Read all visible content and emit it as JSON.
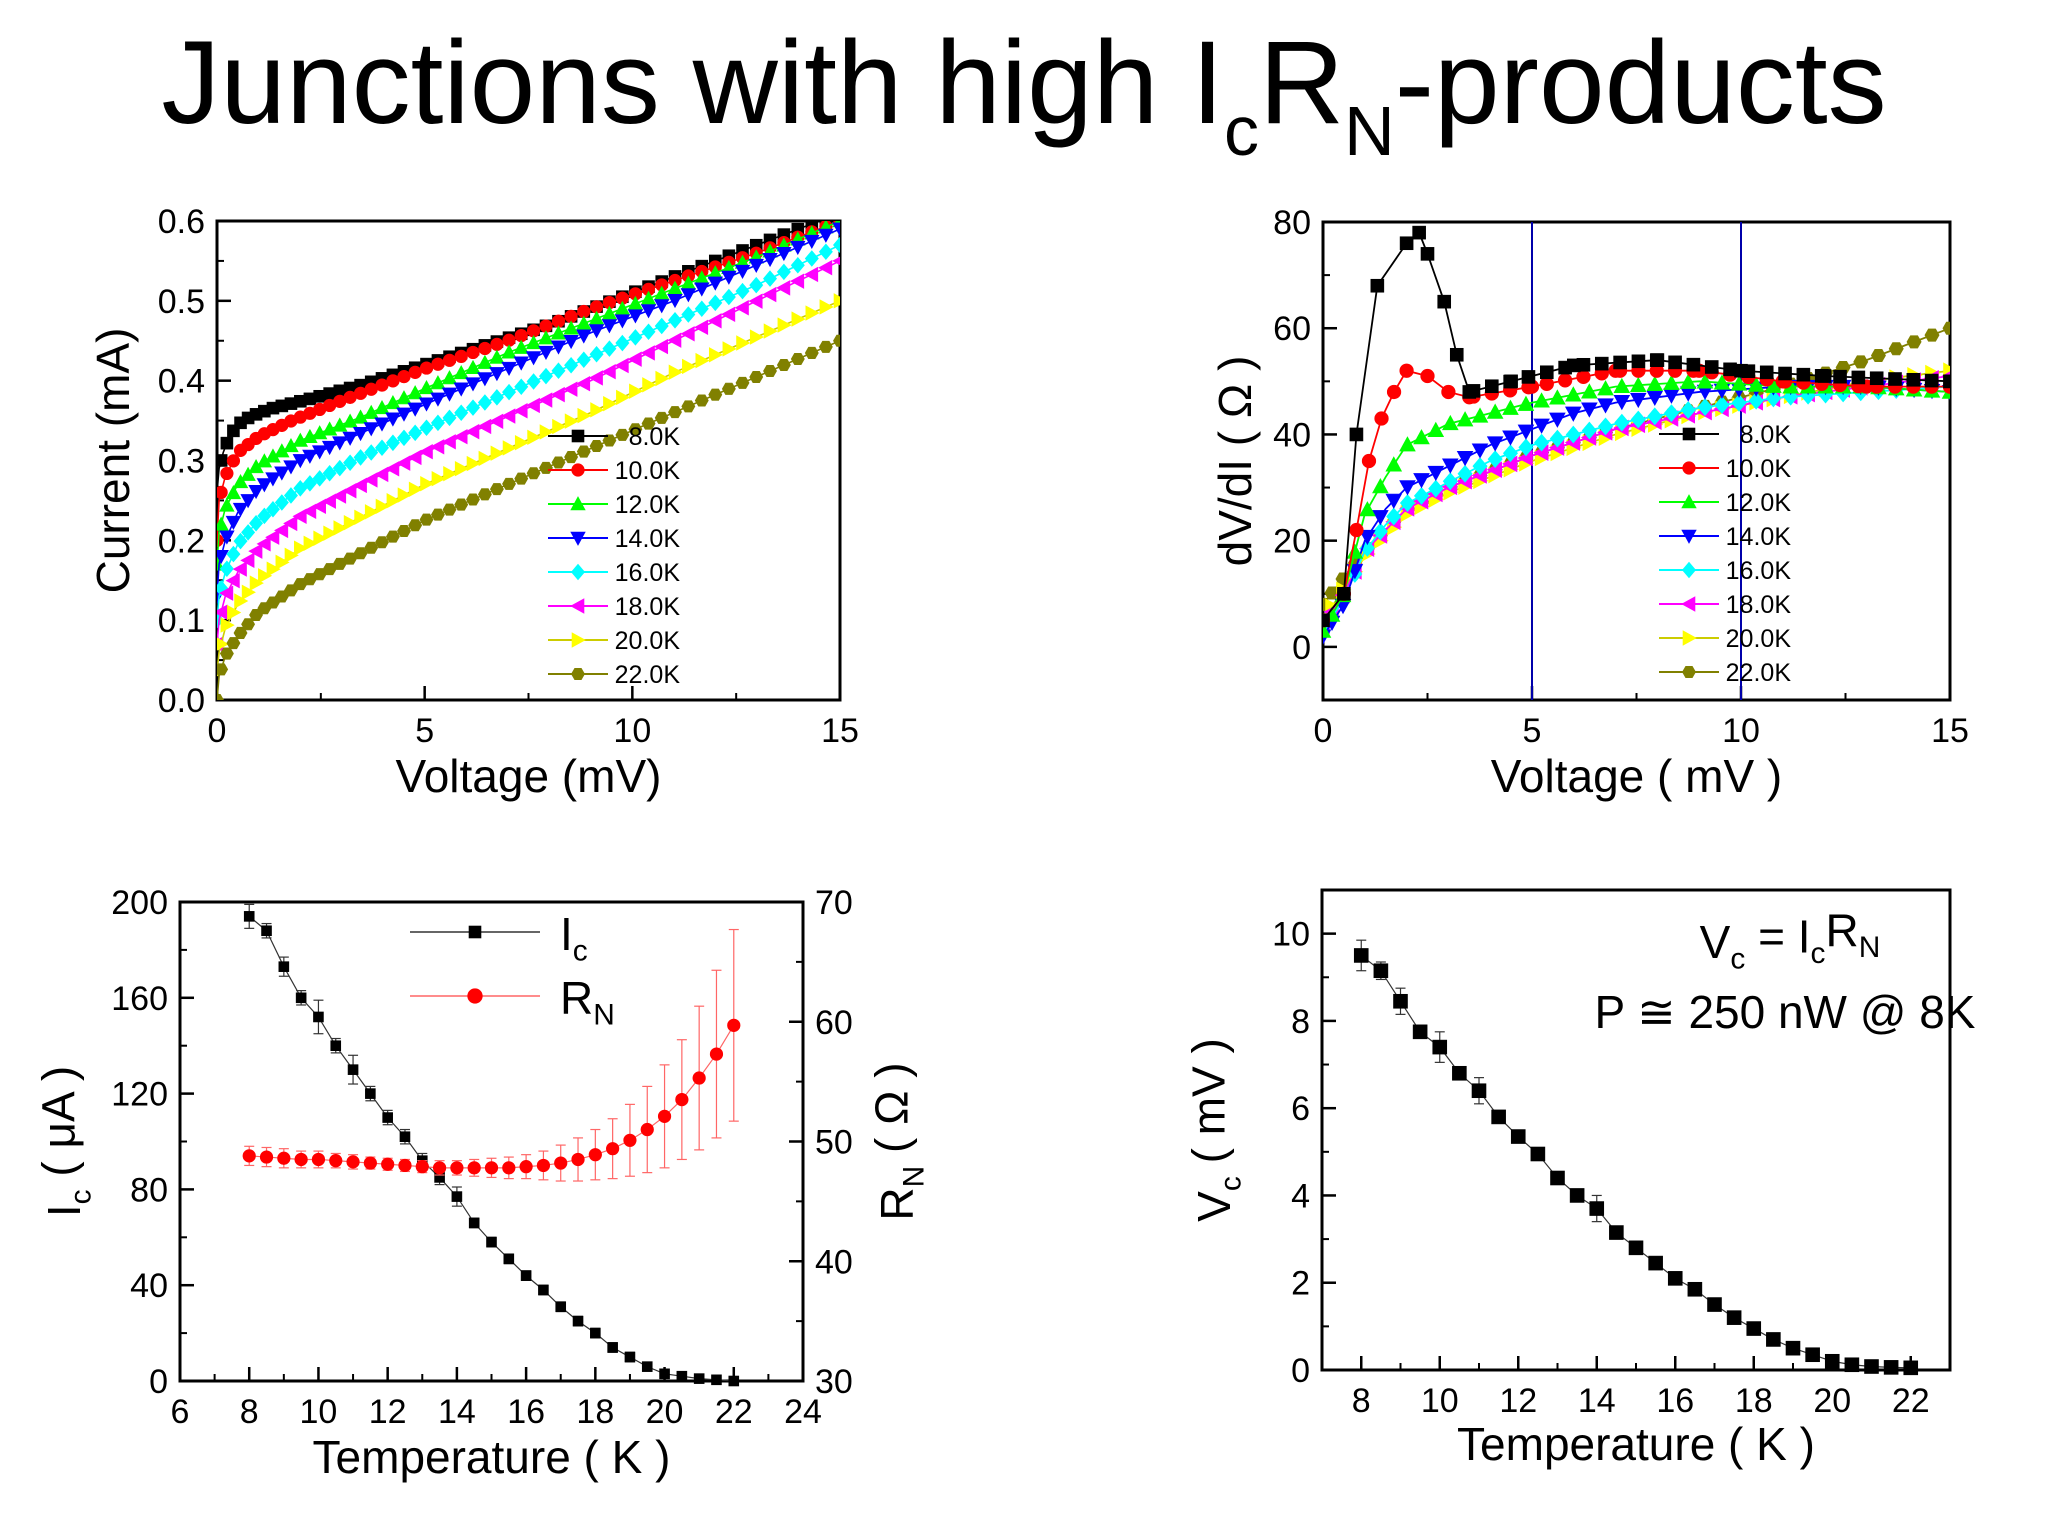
{
  "slide": {
    "title_main": "Junctions with high I",
    "title_sub1": "c",
    "title_mid": "R",
    "title_sub2": "N",
    "title_end": "-products"
  },
  "chart_data": [
    {
      "id": "iv",
      "type": "line",
      "xlabel": "Voltage (mV)",
      "ylabel": "Current (mA)",
      "xlim": [
        0,
        15
      ],
      "ylim": [
        0,
        0.6
      ],
      "xticks": [
        0,
        5,
        10,
        15
      ],
      "yticks": [
        0.0,
        0.1,
        0.2,
        0.3,
        0.4,
        0.5,
        0.6
      ],
      "ytick_labels": [
        "0.0",
        "0.1",
        "0.2",
        "0.3",
        "0.4",
        "0.5",
        "0.6"
      ],
      "legend": "right",
      "series": [
        {
          "name": "8.0K",
          "color": "#000000",
          "marker": "square",
          "x": [
            0,
            0.05,
            0.15,
            0.3,
            0.5,
            0.8,
            1.3,
            2.3,
            3.5,
            5,
            6.5,
            8,
            10,
            12,
            13.5,
            15
          ],
          "y": [
            0.26,
            0.29,
            0.31,
            0.33,
            0.345,
            0.355,
            0.365,
            0.378,
            0.395,
            0.42,
            0.445,
            0.47,
            0.51,
            0.55,
            0.58,
            0.61
          ]
        },
        {
          "name": "10.0K",
          "color": "#ff0000",
          "marker": "circle",
          "x": [
            0,
            0.05,
            0.2,
            0.5,
            1,
            1.8,
            3,
            5,
            7,
            9,
            11,
            13,
            15
          ],
          "y": [
            0.2,
            0.25,
            0.28,
            0.31,
            0.33,
            0.35,
            0.375,
            0.415,
            0.45,
            0.49,
            0.525,
            0.56,
            0.6
          ]
        },
        {
          "name": "12.0K",
          "color": "#00ff00",
          "marker": "triangle-up",
          "x": [
            0,
            0.05,
            0.2,
            0.5,
            1,
            2,
            3.5,
            5,
            7,
            9,
            11,
            13,
            15
          ],
          "y": [
            0.17,
            0.21,
            0.24,
            0.27,
            0.295,
            0.325,
            0.355,
            0.39,
            0.435,
            0.475,
            0.515,
            0.555,
            0.6
          ]
        },
        {
          "name": "14.0K",
          "color": "#0000ff",
          "marker": "triangle-down",
          "x": [
            0,
            0.05,
            0.2,
            0.5,
            1,
            2,
            3.5,
            5,
            7,
            9,
            11,
            13,
            15
          ],
          "y": [
            0.13,
            0.17,
            0.2,
            0.235,
            0.265,
            0.3,
            0.335,
            0.37,
            0.415,
            0.46,
            0.5,
            0.545,
            0.59
          ]
        },
        {
          "name": "16.0K",
          "color": "#00ffff",
          "marker": "diamond",
          "x": [
            0,
            0.05,
            0.2,
            0.5,
            1,
            2,
            3.5,
            5,
            7,
            9,
            11,
            13,
            15
          ],
          "y": [
            0.1,
            0.13,
            0.16,
            0.195,
            0.225,
            0.265,
            0.305,
            0.34,
            0.385,
            0.43,
            0.475,
            0.52,
            0.57
          ]
        },
        {
          "name": "18.0K",
          "color": "#ff00ff",
          "marker": "triangle-left",
          "x": [
            0,
            0.05,
            0.2,
            0.5,
            1,
            2,
            3.5,
            5,
            7,
            9,
            11,
            13,
            15
          ],
          "y": [
            0.07,
            0.1,
            0.13,
            0.16,
            0.19,
            0.23,
            0.27,
            0.31,
            0.355,
            0.4,
            0.45,
            0.5,
            0.55
          ]
        },
        {
          "name": "20.0K",
          "color": "#ffff00",
          "marker": "triangle-right",
          "x": [
            0,
            0.05,
            0.2,
            0.5,
            1,
            2,
            3.5,
            5,
            7,
            9,
            11,
            13,
            15
          ],
          "y": [
            0.035,
            0.06,
            0.09,
            0.12,
            0.15,
            0.19,
            0.23,
            0.27,
            0.315,
            0.36,
            0.41,
            0.455,
            0.5
          ]
        },
        {
          "name": "22.0K",
          "color": "#808000",
          "marker": "hexagon",
          "x": [
            0,
            0.05,
            0.2,
            0.5,
            1,
            2,
            3.5,
            5,
            7,
            9,
            11,
            13,
            15
          ],
          "y": [
            0.0,
            0.03,
            0.055,
            0.08,
            0.11,
            0.145,
            0.185,
            0.225,
            0.27,
            0.315,
            0.36,
            0.405,
            0.45
          ]
        }
      ]
    },
    {
      "id": "dvdi",
      "type": "line",
      "xlabel": "Voltage ( mV )",
      "ylabel": "dV/dI ( Ω )",
      "xlim": [
        0,
        15
      ],
      "ylim": [
        -10,
        80
      ],
      "xticks": [
        0,
        5,
        10,
        15
      ],
      "yticks": [
        0,
        20,
        40,
        60,
        80
      ],
      "ytick_labels": [
        "0",
        "20",
        "40",
        "60",
        "80"
      ],
      "vlines": [
        5,
        10
      ],
      "vline_color": "#0000aa",
      "legend": "right",
      "series": [
        {
          "name": "8.0K",
          "color": "#000000",
          "marker": "square",
          "x": [
            0,
            0.5,
            0.8,
            1.3,
            2.0,
            2.3,
            2.5,
            2.9,
            3.2,
            3.5,
            4.5,
            6,
            8,
            10,
            12,
            15
          ],
          "y": [
            5,
            10,
            40,
            68,
            76,
            78,
            74,
            65,
            55,
            48,
            50,
            53,
            54,
            52,
            51,
            50
          ]
        },
        {
          "name": "10.0K",
          "color": "#ff0000",
          "marker": "circle",
          "x": [
            0,
            0.5,
            0.8,
            1.1,
            1.4,
            1.7,
            2.0,
            2.5,
            3.0,
            3.5,
            5,
            7,
            9,
            11,
            13,
            15
          ],
          "y": [
            5,
            10,
            22,
            35,
            43,
            48,
            52,
            51,
            48,
            47,
            49,
            52,
            52,
            50,
            49,
            49
          ]
        },
        {
          "name": "12.0K",
          "color": "#00ff00",
          "marker": "triangle-up",
          "x": [
            0,
            0.5,
            1,
            1.5,
            2,
            3,
            4,
            5,
            7,
            9,
            11,
            13,
            15
          ],
          "y": [
            3,
            10,
            25,
            32,
            38,
            42,
            44,
            46,
            49,
            50,
            49,
            49,
            48
          ]
        },
        {
          "name": "14.0K",
          "color": "#0000ff",
          "marker": "triangle-down",
          "x": [
            0,
            0.5,
            1,
            1.5,
            2,
            3,
            4,
            5,
            6,
            7,
            9,
            11,
            13,
            15
          ],
          "y": [
            2,
            8,
            20,
            26,
            30,
            34,
            38,
            41,
            44,
            46,
            48,
            49,
            49,
            48
          ]
        },
        {
          "name": "16.0K",
          "color": "#00ffff",
          "marker": "diamond",
          "x": [
            0,
            0.5,
            1,
            1.5,
            2,
            3,
            4,
            5,
            7,
            9,
            11,
            13,
            15
          ],
          "y": [
            3,
            9,
            18,
            23,
            27,
            31,
            35,
            38,
            42,
            45,
            47,
            48,
            49
          ]
        },
        {
          "name": "18.0K",
          "color": "#ff00ff",
          "marker": "triangle-left",
          "x": [
            0,
            0.5,
            1,
            1.5,
            2,
            3,
            4,
            5,
            7,
            9,
            11,
            13,
            15
          ],
          "y": [
            4,
            10,
            18,
            22,
            26,
            30,
            33,
            36,
            41,
            44,
            47,
            49,
            51
          ]
        },
        {
          "name": "20.0K",
          "color": "#ffff00",
          "marker": "triangle-right",
          "x": [
            0,
            0.5,
            1,
            1.5,
            2,
            3,
            4,
            5,
            7,
            9,
            11,
            13,
            15
          ],
          "y": [
            5,
            11,
            17,
            21,
            25,
            29,
            32,
            35,
            40,
            44,
            47,
            50,
            52
          ]
        },
        {
          "name": "22.0K",
          "color": "#808000",
          "marker": "hexagon",
          "x": [
            0,
            0.5,
            1,
            1.5,
            2,
            3,
            4,
            5,
            7,
            9,
            11,
            13,
            15
          ],
          "y": [
            8,
            13,
            18,
            22,
            26,
            30,
            33,
            36,
            41,
            45,
            49,
            54,
            60
          ]
        }
      ]
    },
    {
      "id": "ic_rn",
      "type": "scatter",
      "xlabel": "Temperature ( K )",
      "ylabel": "I",
      "ylabel_sub": "c",
      "ylabel_tail": " ( μA )",
      "y2label": "R",
      "y2label_sub": "N",
      "y2label_tail": " ( Ω )",
      "xlim": [
        6,
        24
      ],
      "ylim": [
        0,
        200
      ],
      "y2lim": [
        30,
        70
      ],
      "xticks": [
        6,
        8,
        10,
        12,
        14,
        16,
        18,
        20,
        22,
        24
      ],
      "yticks": [
        0,
        40,
        80,
        120,
        160,
        200
      ],
      "y2ticks": [
        30,
        40,
        50,
        60,
        70
      ],
      "legend": "top-center",
      "series": [
        {
          "name": "I",
          "name_sub": "c",
          "axis": "left",
          "color": "#000000",
          "marker": "square",
          "x": [
            8,
            8.5,
            9,
            9.5,
            10,
            10.5,
            11,
            11.5,
            12,
            12.5,
            13,
            13.5,
            14,
            14.5,
            15,
            15.5,
            16,
            16.5,
            17,
            17.5,
            18,
            18.5,
            19,
            19.5,
            20,
            20.5,
            21,
            21.5,
            22
          ],
          "y": [
            194,
            188,
            173,
            160,
            152,
            140,
            130,
            120,
            110,
            102,
            92,
            85,
            77,
            66,
            58,
            51,
            44,
            38,
            31,
            25,
            20,
            14,
            10,
            6,
            3,
            2,
            1,
            0.5,
            0
          ],
          "err": [
            5,
            3,
            4,
            3,
            7,
            3,
            6,
            3,
            3,
            3,
            3,
            3,
            4,
            2,
            2,
            2,
            2,
            2,
            2,
            2,
            2,
            2,
            2,
            1,
            1,
            1,
            1,
            1,
            1
          ]
        },
        {
          "name": "R",
          "name_sub": "N",
          "axis": "right",
          "color": "#ff0000",
          "marker": "circle",
          "x": [
            8,
            8.5,
            9,
            9.5,
            10,
            10.5,
            11,
            11.5,
            12,
            12.5,
            13,
            13.5,
            14,
            14.5,
            15,
            15.5,
            16,
            16.5,
            17,
            17.5,
            18,
            18.5,
            19,
            19.5,
            20,
            20.5,
            21,
            21.5,
            22
          ],
          "y": [
            48.8,
            48.7,
            48.6,
            48.5,
            48.5,
            48.4,
            48.3,
            48.2,
            48.1,
            48.0,
            47.9,
            47.8,
            47.8,
            47.8,
            47.8,
            47.8,
            47.9,
            48.0,
            48.2,
            48.5,
            48.9,
            49.4,
            50.1,
            51,
            52.1,
            53.5,
            55.3,
            57.3,
            59.7
          ],
          "err": [
            0.8,
            0.8,
            0.8,
            0.7,
            0.7,
            0.6,
            0.6,
            0.5,
            0.5,
            0.5,
            0.5,
            0.6,
            0.6,
            0.7,
            0.8,
            0.9,
            1.0,
            1.2,
            1.5,
            1.8,
            2.1,
            2.5,
            3.0,
            3.6,
            4.3,
            5.0,
            6.0,
            7.0,
            8.0
          ]
        }
      ]
    },
    {
      "id": "vc",
      "type": "scatter",
      "xlabel": "Temperature ( K )",
      "ylabel": "V",
      "ylabel_sub": "c",
      "ylabel_tail": " ( mV )",
      "xlim": [
        7,
        23
      ],
      "ylim": [
        0,
        11
      ],
      "xticks": [
        8,
        10,
        12,
        14,
        16,
        18,
        20,
        22
      ],
      "yticks": [
        0,
        2,
        4,
        6,
        8,
        10
      ],
      "annotations": {
        "line1_a": "V",
        "line1_a_sub": "c",
        "line1_b": " = I",
        "line1_b_sub": "c",
        "line1_c": "R",
        "line1_c_sub": "N",
        "line2": "P ≅ 250 nW @ 8K"
      },
      "series": [
        {
          "name": "V",
          "name_sub": "c",
          "color": "#000000",
          "marker": "square",
          "x": [
            8,
            8.5,
            9,
            9.5,
            10,
            10.5,
            11,
            11.5,
            12,
            12.5,
            13,
            13.5,
            14,
            14.5,
            15,
            15.5,
            16,
            16.5,
            17,
            17.5,
            18,
            18.5,
            19,
            19.5,
            20,
            20.5,
            21,
            21.5,
            22
          ],
          "y": [
            9.5,
            9.15,
            8.45,
            7.75,
            7.4,
            6.8,
            6.4,
            5.8,
            5.35,
            4.95,
            4.4,
            4.0,
            3.7,
            3.15,
            2.8,
            2.45,
            2.1,
            1.85,
            1.5,
            1.2,
            0.95,
            0.7,
            0.5,
            0.35,
            0.2,
            0.12,
            0.08,
            0.06,
            0.05
          ],
          "err": [
            0.35,
            0.2,
            0.3,
            0.1,
            0.35,
            0.1,
            0.3,
            0.1,
            0.1,
            0.1,
            0.1,
            0.1,
            0.3,
            0.1,
            0.1,
            0.05,
            0.05,
            0.05,
            0.05,
            0.05,
            0.05,
            0.05,
            0.05,
            0.05,
            0.05,
            0.05,
            0.05,
            0.05,
            0.05
          ]
        }
      ]
    }
  ]
}
